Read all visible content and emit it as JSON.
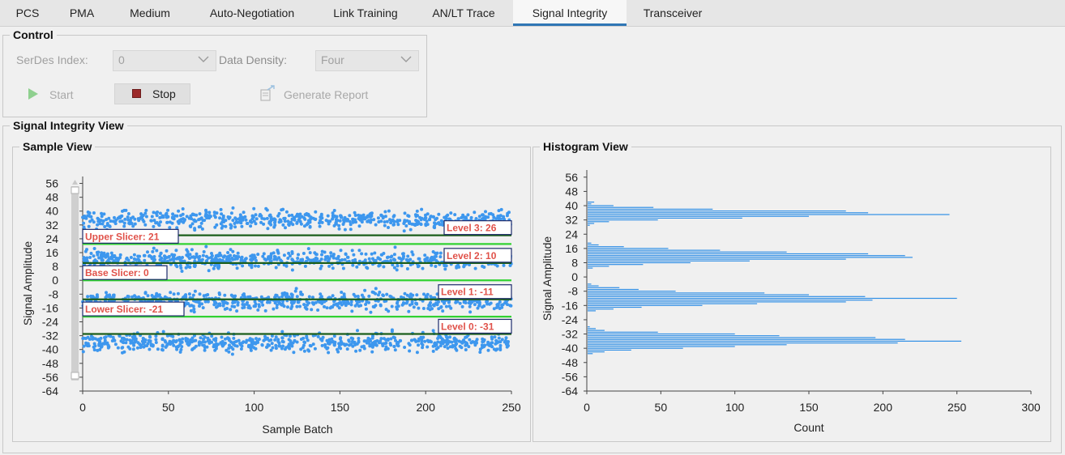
{
  "tabs": [
    {
      "label": "PCS",
      "active": false
    },
    {
      "label": "PMA",
      "active": false
    },
    {
      "label": "Medium",
      "active": false
    },
    {
      "label": "Auto-Negotiation",
      "active": false
    },
    {
      "label": "Link Training",
      "active": false
    },
    {
      "label": "AN/LT Trace",
      "active": false
    },
    {
      "label": "Signal Integrity",
      "active": true
    },
    {
      "label": "Transceiver",
      "active": false
    }
  ],
  "control": {
    "title": "Control",
    "serdes_label": "SerDes Index:",
    "serdes_value": "0",
    "density_label": "Data Density:",
    "density_value": "Four",
    "start_label": "Start",
    "stop_label": "Stop",
    "report_label": "Generate Report",
    "start_icon": "play-icon",
    "stop_icon": "stop-icon",
    "report_icon": "report-export-icon"
  },
  "si_view": {
    "title": "Signal Integrity View"
  },
  "sample_view": {
    "title": "Sample View"
  },
  "histogram_view": {
    "title": "Histogram View"
  },
  "colors": {
    "points": "#3d97ee",
    "slicer": "#32d232",
    "level": "#1b5e1b",
    "bar": "#2f8fe6",
    "label_text": "#e0524a",
    "label_border": "#1c2a6a"
  },
  "chart_data": [
    {
      "type": "scatter",
      "title": "Sample View",
      "xlabel": "Sample Batch",
      "ylabel": "Signal Amplitude",
      "xlim": [
        0,
        250
      ],
      "ylim": [
        -64,
        60
      ],
      "xticks": [
        0,
        50,
        100,
        150,
        200,
        250
      ],
      "yticks": [
        56,
        48,
        40,
        32,
        24,
        16,
        8,
        0,
        -8,
        -16,
        -24,
        -32,
        -40,
        -48,
        -56,
        -64
      ],
      "levels": [
        {
          "value": 26,
          "label": "Level 3: 26"
        },
        {
          "value": 10,
          "label": "Level 2: 10"
        },
        {
          "value": -11,
          "label": "Level 1: -11"
        },
        {
          "value": -31,
          "label": "Level 0: -31"
        }
      ],
      "slicers": [
        {
          "value": 21,
          "label": "Upper Slicer: 21"
        },
        {
          "value": 0,
          "label": "Base Slicer: 0"
        },
        {
          "value": -21,
          "label": "Lower Slicer: -21"
        }
      ],
      "clusters": [
        {
          "center": 35,
          "spread": 2.6
        },
        {
          "center": 12,
          "spread": 2.6
        },
        {
          "center": -12,
          "spread": 2.6
        },
        {
          "center": -36,
          "spread": 2.6
        }
      ],
      "points_per_cluster": 650
    },
    {
      "type": "bar",
      "orientation": "horizontal",
      "title": "Histogram View",
      "xlabel": "Count",
      "ylabel": "Signal Amplitude",
      "xlim": [
        0,
        300
      ],
      "ylim": [
        -64,
        60
      ],
      "xticks": [
        0,
        50,
        100,
        150,
        200,
        250,
        300
      ],
      "yticks": [
        56,
        48,
        40,
        32,
        24,
        16,
        8,
        0,
        -8,
        -16,
        -24,
        -32,
        -40,
        -48,
        -56,
        -64
      ],
      "bars": [
        {
          "y": 42,
          "count": 5
        },
        {
          "y": 41,
          "count": 3
        },
        {
          "y": 40,
          "count": 18
        },
        {
          "y": 39,
          "count": 45
        },
        {
          "y": 38,
          "count": 85
        },
        {
          "y": 37,
          "count": 175
        },
        {
          "y": 36,
          "count": 190
        },
        {
          "y": 35,
          "count": 245
        },
        {
          "y": 34,
          "count": 150
        },
        {
          "y": 33,
          "count": 105
        },
        {
          "y": 32,
          "count": 48
        },
        {
          "y": 31,
          "count": 15
        },
        {
          "y": 30,
          "count": 5
        },
        {
          "y": 29,
          "count": 2
        },
        {
          "y": 19,
          "count": 3
        },
        {
          "y": 18,
          "count": 8
        },
        {
          "y": 17,
          "count": 25
        },
        {
          "y": 16,
          "count": 55
        },
        {
          "y": 15,
          "count": 90
        },
        {
          "y": 14,
          "count": 135
        },
        {
          "y": 13,
          "count": 190
        },
        {
          "y": 12,
          "count": 215
        },
        {
          "y": 11,
          "count": 220
        },
        {
          "y": 10,
          "count": 175
        },
        {
          "y": 9,
          "count": 110
        },
        {
          "y": 8,
          "count": 70
        },
        {
          "y": 7,
          "count": 38
        },
        {
          "y": 6,
          "count": 15
        },
        {
          "y": 5,
          "count": 4
        },
        {
          "y": -4,
          "count": 3
        },
        {
          "y": -5,
          "count": 8
        },
        {
          "y": -6,
          "count": 22
        },
        {
          "y": -7,
          "count": 35
        },
        {
          "y": -8,
          "count": 60
        },
        {
          "y": -9,
          "count": 120
        },
        {
          "y": -10,
          "count": 150
        },
        {
          "y": -11,
          "count": 188
        },
        {
          "y": -12,
          "count": 250
        },
        {
          "y": -13,
          "count": 193
        },
        {
          "y": -14,
          "count": 175
        },
        {
          "y": -15,
          "count": 115
        },
        {
          "y": -16,
          "count": 78
        },
        {
          "y": -17,
          "count": 37
        },
        {
          "y": -18,
          "count": 18
        },
        {
          "y": -19,
          "count": 6
        },
        {
          "y": -28,
          "count": 2
        },
        {
          "y": -29,
          "count": 6
        },
        {
          "y": -30,
          "count": 12
        },
        {
          "y": -31,
          "count": 48
        },
        {
          "y": -32,
          "count": 100
        },
        {
          "y": -33,
          "count": 130
        },
        {
          "y": -34,
          "count": 195
        },
        {
          "y": -35,
          "count": 215
        },
        {
          "y": -36,
          "count": 253
        },
        {
          "y": -37,
          "count": 210
        },
        {
          "y": -38,
          "count": 135
        },
        {
          "y": -39,
          "count": 100
        },
        {
          "y": -40,
          "count": 65
        },
        {
          "y": -41,
          "count": 30
        },
        {
          "y": -42,
          "count": 12
        },
        {
          "y": -43,
          "count": 4
        }
      ]
    }
  ]
}
